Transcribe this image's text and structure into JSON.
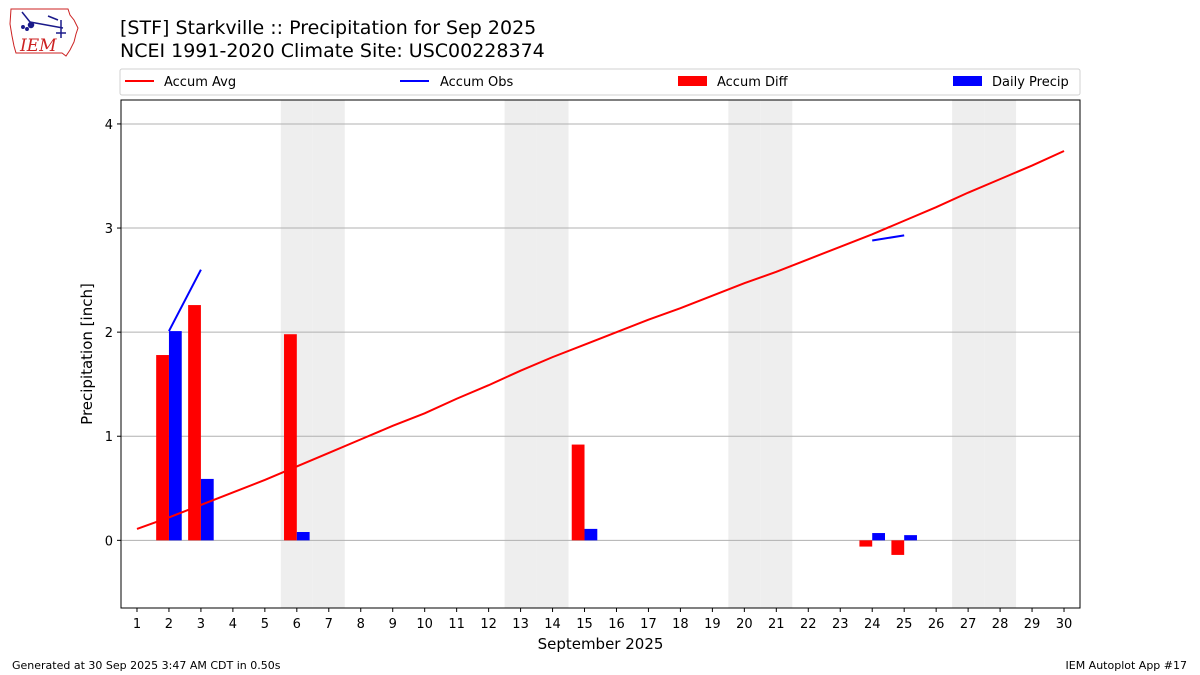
{
  "header": {
    "title_line1": "[STF] Starkville :: Precipitation for Sep 2025",
    "title_line2": "NCEI 1991-2020 Climate Site: USC00228374",
    "logo_text": "IEM"
  },
  "footer": {
    "left": "Generated at 30 Sep 2025 3:47 AM CDT in 0.50s",
    "right": "IEM Autoplot App #17"
  },
  "colors": {
    "accum_avg": "#ff0000",
    "accum_obs": "#0000ff",
    "accum_diff": "#ff0000",
    "daily_precip": "#0000ff",
    "weekend_shade": "#eeeeee",
    "grid": "#b0b0b0",
    "logo": "#cc2222"
  },
  "chart_data": {
    "type": "bar",
    "xlabel": "September 2025",
    "ylabel": "Precipitation [inch]",
    "xlim": [
      0.5,
      30.5
    ],
    "ylim": [
      -0.65,
      4.23
    ],
    "y_ticks": [
      0,
      1,
      2,
      3,
      4
    ],
    "x_ticks": [
      1,
      2,
      3,
      4,
      5,
      6,
      7,
      8,
      9,
      10,
      11,
      12,
      13,
      14,
      15,
      16,
      17,
      18,
      19,
      20,
      21,
      22,
      23,
      24,
      25,
      26,
      27,
      28,
      29,
      30
    ],
    "grid": "horizontal",
    "legend": {
      "placement": "top",
      "entries": [
        {
          "label": "Accum Avg",
          "kind": "line",
          "key": "accum_avg"
        },
        {
          "label": "Accum Obs",
          "kind": "line",
          "key": "accum_obs"
        },
        {
          "label": "Accum Diff",
          "kind": "bar",
          "key": "accum_diff"
        },
        {
          "label": "Daily Precip",
          "kind": "bar",
          "key": "daily_precip"
        }
      ]
    },
    "weekend_days": [
      6,
      7,
      13,
      14,
      20,
      21,
      27,
      28
    ],
    "series": [
      {
        "name": "Accum Avg",
        "type": "line",
        "x": [
          1,
          2,
          3,
          4,
          5,
          6,
          7,
          8,
          9,
          10,
          11,
          12,
          13,
          14,
          15,
          16,
          17,
          18,
          19,
          20,
          21,
          22,
          23,
          24,
          25,
          26,
          27,
          28,
          29,
          30
        ],
        "values": [
          0.11,
          0.22,
          0.34,
          0.46,
          0.58,
          0.71,
          0.84,
          0.97,
          1.1,
          1.22,
          1.36,
          1.49,
          1.63,
          1.76,
          1.88,
          2.0,
          2.12,
          2.23,
          2.35,
          2.47,
          2.58,
          2.7,
          2.82,
          2.94,
          3.07,
          3.2,
          3.34,
          3.47,
          3.6,
          3.74
        ]
      },
      {
        "name": "Accum Obs",
        "type": "line",
        "segments": [
          {
            "x": [
              2,
              3
            ],
            "values": [
              2.01,
              2.6
            ]
          },
          {
            "x": [
              24,
              25
            ],
            "values": [
              2.88,
              2.93
            ]
          }
        ]
      },
      {
        "name": "Accum Diff",
        "type": "bar",
        "offset": -0.2,
        "x": [
          2,
          3,
          6,
          15,
          24,
          25
        ],
        "values": [
          1.78,
          2.26,
          1.98,
          0.92,
          -0.06,
          -0.14
        ]
      },
      {
        "name": "Daily Precip",
        "type": "bar",
        "offset": 0.2,
        "x": [
          2,
          3,
          6,
          15,
          24,
          25
        ],
        "values": [
          2.01,
          0.59,
          0.08,
          0.11,
          0.07,
          0.05
        ]
      }
    ]
  }
}
